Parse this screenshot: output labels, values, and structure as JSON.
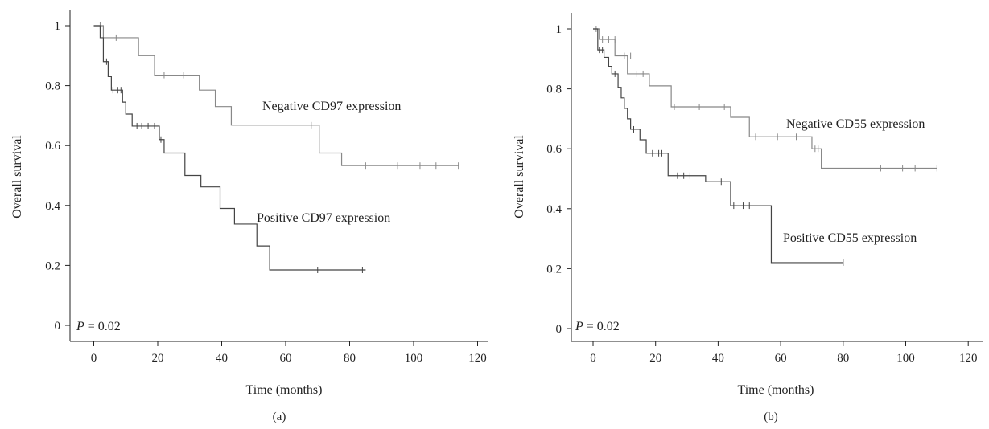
{
  "chart_data": [
    {
      "type": "line",
      "panel": "(a)",
      "xlabel": "Time (months)",
      "ylabel": "Overall survival",
      "xlim": [
        0,
        120
      ],
      "ylim": [
        0,
        1
      ],
      "xticks": [
        0,
        20,
        40,
        60,
        80,
        100,
        120
      ],
      "yticks": [
        0,
        0.2,
        0.4,
        0.6,
        0.8,
        1
      ],
      "ytick_labels": [
        "0",
        "0.2",
        "0.4",
        "0.6",
        "0.8",
        "1"
      ],
      "grid": false,
      "p_value": "= 0.02",
      "p_symbol": "P",
      "series": [
        {
          "name": "Negative CD97 expression",
          "color": "#888888",
          "steps": [
            [
              0,
              1.0
            ],
            [
              3,
              0.96
            ],
            [
              14,
              0.9
            ],
            [
              19,
              0.835
            ],
            [
              33,
              0.785
            ],
            [
              38,
              0.73
            ],
            [
              43,
              0.668
            ],
            [
              70.5,
              0.575
            ],
            [
              77.5,
              0.533
            ],
            [
              114,
              0.533
            ]
          ],
          "censored": [
            [
              2,
              1.0
            ],
            [
              7,
              0.96
            ],
            [
              22,
              0.835
            ],
            [
              28,
              0.835
            ],
            [
              68,
              0.668
            ],
            [
              85,
              0.533
            ],
            [
              95,
              0.533
            ],
            [
              102,
              0.533
            ],
            [
              107,
              0.533
            ],
            [
              114,
              0.533
            ]
          ]
        },
        {
          "name": "Positive CD97 expression",
          "color": "#444444",
          "steps": [
            [
              0,
              1.0
            ],
            [
              2,
              0.96
            ],
            [
              3,
              0.88
            ],
            [
              4.5,
              0.83
            ],
            [
              5.5,
              0.785
            ],
            [
              9,
              0.745
            ],
            [
              10,
              0.705
            ],
            [
              12,
              0.665
            ],
            [
              20.5,
              0.62
            ],
            [
              22,
              0.575
            ],
            [
              28.5,
              0.5
            ],
            [
              33.5,
              0.462
            ],
            [
              39.5,
              0.39
            ],
            [
              44,
              0.338
            ],
            [
              51,
              0.265
            ],
            [
              55,
              0.185
            ],
            [
              85,
              0.185
            ]
          ],
          "censored": [
            [
              4,
              0.88
            ],
            [
              6,
              0.785
            ],
            [
              7.5,
              0.785
            ],
            [
              8.5,
              0.785
            ],
            [
              13.5,
              0.665
            ],
            [
              15,
              0.665
            ],
            [
              17,
              0.665
            ],
            [
              19,
              0.665
            ],
            [
              21,
              0.62
            ],
            [
              70,
              0.185
            ],
            [
              84,
              0.185
            ]
          ]
        }
      ]
    },
    {
      "type": "line",
      "panel": "(b)",
      "xlabel": "Time (months)",
      "ylabel": "Overall survival",
      "xlim": [
        0,
        120
      ],
      "ylim": [
        0,
        1
      ],
      "xticks": [
        0,
        20,
        40,
        60,
        80,
        100,
        120
      ],
      "yticks": [
        0,
        0.2,
        0.4,
        0.6,
        0.8,
        1
      ],
      "ytick_labels": [
        "0",
        "0.2",
        "0.4",
        "0.6",
        "0.8",
        "1"
      ],
      "grid": false,
      "p_value": "= 0.02",
      "p_symbol": "P",
      "series": [
        {
          "name": "Negative CD55 expression",
          "color": "#888888",
          "steps": [
            [
              0,
              1.0
            ],
            [
              2,
              0.965
            ],
            [
              7,
              0.91
            ],
            [
              11,
              0.85
            ],
            [
              18,
              0.81
            ],
            [
              25,
              0.74
            ],
            [
              44,
              0.705
            ],
            [
              50,
              0.64
            ],
            [
              70,
              0.6
            ],
            [
              73,
              0.535
            ],
            [
              110,
              0.535
            ]
          ],
          "censored": [
            [
              1,
              1.0
            ],
            [
              3,
              0.965
            ],
            [
              5,
              0.965
            ],
            [
              7,
              0.965
            ],
            [
              10,
              0.91
            ],
            [
              12,
              0.91
            ],
            [
              14,
              0.85
            ],
            [
              16,
              0.85
            ],
            [
              26,
              0.74
            ],
            [
              34,
              0.74
            ],
            [
              42,
              0.74
            ],
            [
              52,
              0.64
            ],
            [
              59,
              0.64
            ],
            [
              65,
              0.64
            ],
            [
              71,
              0.6
            ],
            [
              72,
              0.6
            ],
            [
              92,
              0.535
            ],
            [
              99,
              0.535
            ],
            [
              103,
              0.535
            ],
            [
              110,
              0.535
            ]
          ]
        },
        {
          "name": "Positive CD55 expression",
          "color": "#444444",
          "steps": [
            [
              0,
              1.0
            ],
            [
              1.5,
              0.93
            ],
            [
              3.5,
              0.905
            ],
            [
              5,
              0.875
            ],
            [
              6,
              0.85
            ],
            [
              8,
              0.805
            ],
            [
              9,
              0.77
            ],
            [
              10,
              0.735
            ],
            [
              11,
              0.7
            ],
            [
              12,
              0.665
            ],
            [
              15,
              0.63
            ],
            [
              17,
              0.585
            ],
            [
              24,
              0.51
            ],
            [
              36,
              0.49
            ],
            [
              44,
              0.41
            ],
            [
              57,
              0.22
            ],
            [
              80,
              0.22
            ]
          ],
          "censored": [
            [
              2,
              0.93
            ],
            [
              3,
              0.93
            ],
            [
              7,
              0.85
            ],
            [
              13,
              0.665
            ],
            [
              19,
              0.585
            ],
            [
              21,
              0.585
            ],
            [
              22,
              0.585
            ],
            [
              27,
              0.51
            ],
            [
              29,
              0.51
            ],
            [
              31,
              0.51
            ],
            [
              39,
              0.49
            ],
            [
              41,
              0.49
            ],
            [
              45,
              0.41
            ],
            [
              48,
              0.41
            ],
            [
              50,
              0.41
            ],
            [
              80,
              0.22
            ]
          ]
        }
      ]
    }
  ]
}
